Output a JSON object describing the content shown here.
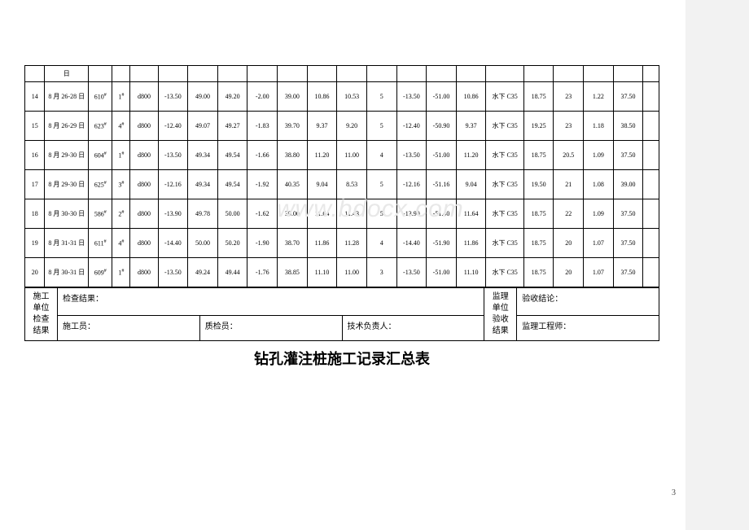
{
  "watermark": "www.bdocx.com",
  "title": "钻孔灌注桩施工记录汇总表",
  "pagenum": "3",
  "header_row_date": "日",
  "rows": [
    {
      "idx": "14",
      "date": "8 月 26-28 日",
      "pile": "610",
      "sup": "1",
      "dia": "d800",
      "v1": "-13.50",
      "v2": "49.00",
      "v3": "49.20",
      "v4": "-2.00",
      "v5": "39.00",
      "v6": "10.86",
      "v7": "10.53",
      "v8": "5",
      "v9": "-13.50",
      "v10": "-51.00",
      "v11": "10.86",
      "conc": "水下 C35",
      "v12": "18.75",
      "v13": "23",
      "v14": "1.22",
      "v15": "37.50"
    },
    {
      "idx": "15",
      "date": "8 月 26-29 日",
      "pile": "623",
      "sup": "4",
      "dia": "d800",
      "v1": "-12.40",
      "v2": "49.07",
      "v3": "49.27",
      "v4": "-1.83",
      "v5": "39.70",
      "v6": "9.37",
      "v7": "9.20",
      "v8": "5",
      "v9": "-12.40",
      "v10": "-50.90",
      "v11": "9.37",
      "conc": "水下 C35",
      "v12": "19.25",
      "v13": "23",
      "v14": "1.18",
      "v15": "38.50"
    },
    {
      "idx": "16",
      "date": "8 月 29-30 日",
      "pile": "604",
      "sup": "1",
      "dia": "d800",
      "v1": "-13.50",
      "v2": "49.34",
      "v3": "49.54",
      "v4": "-1.66",
      "v5": "38.80",
      "v6": "11.20",
      "v7": "11.00",
      "v8": "4",
      "v9": "-13.50",
      "v10": "-51.00",
      "v11": "11.20",
      "conc": "水下 C35",
      "v12": "18.75",
      "v13": "20.5",
      "v14": "1.09",
      "v15": "37.50"
    },
    {
      "idx": "17",
      "date": "8 月 29-30 日",
      "pile": "625",
      "sup": "3",
      "dia": "d800",
      "v1": "-12.16",
      "v2": "49.34",
      "v3": "49.54",
      "v4": "-1.92",
      "v5": "40.35",
      "v6": "9.04",
      "v7": "8.53",
      "v8": "5",
      "v9": "-12.16",
      "v10": "-51.16",
      "v11": "9.04",
      "conc": "水下 C35",
      "v12": "19.50",
      "v13": "21",
      "v14": "1.08",
      "v15": "39.00"
    },
    {
      "idx": "18",
      "date": "8 月 30-30 日",
      "pile": "586",
      "sup": "2",
      "dia": "d800",
      "v1": "-13.90",
      "v2": "49.78",
      "v3": "50.00",
      "v4": "-1.62",
      "v5": "39.00",
      "v6": "11.64",
      "v7": "11.43",
      "v8": "5",
      "v9": "-13.90",
      "v10": "-51.40",
      "v11": "11.64",
      "conc": "水下 C35",
      "v12": "18.75",
      "v13": "22",
      "v14": "1.09",
      "v15": "37.50"
    },
    {
      "idx": "19",
      "date": "8 月 31-31 日",
      "pile": "611",
      "sup": "4",
      "dia": "d800",
      "v1": "-14.40",
      "v2": "50.00",
      "v3": "50.20",
      "v4": "-1.90",
      "v5": "38.70",
      "v6": "11.86",
      "v7": "11.28",
      "v8": "4",
      "v9": "-14.40",
      "v10": "-51.90",
      "v11": "11.86",
      "conc": "水下 C35",
      "v12": "18.75",
      "v13": "20",
      "v14": "1.07",
      "v15": "37.50"
    },
    {
      "idx": "20",
      "date": "8 月 30-31 日",
      "pile": "609",
      "sup": "1",
      "dia": "d800",
      "v1": "-13.50",
      "v2": "49.24",
      "v3": "49.44",
      "v4": "-1.76",
      "v5": "38.85",
      "v6": "11.10",
      "v7": "11.00",
      "v8": "3",
      "v9": "-13.50",
      "v10": "-51.00",
      "v11": "11.10",
      "conc": "水下 C35",
      "v12": "18.75",
      "v13": "20",
      "v14": "1.07",
      "v15": "37.50"
    }
  ],
  "footer": {
    "left_label": "施工单位检查结果",
    "check_result": "检查结果：",
    "constructor": "施工员：",
    "quality": "质检员：",
    "tech": "技术负责人：",
    "right_label": "监理单位验收结果",
    "accept": "验收结论：",
    "supervisor": "监理工程师："
  }
}
